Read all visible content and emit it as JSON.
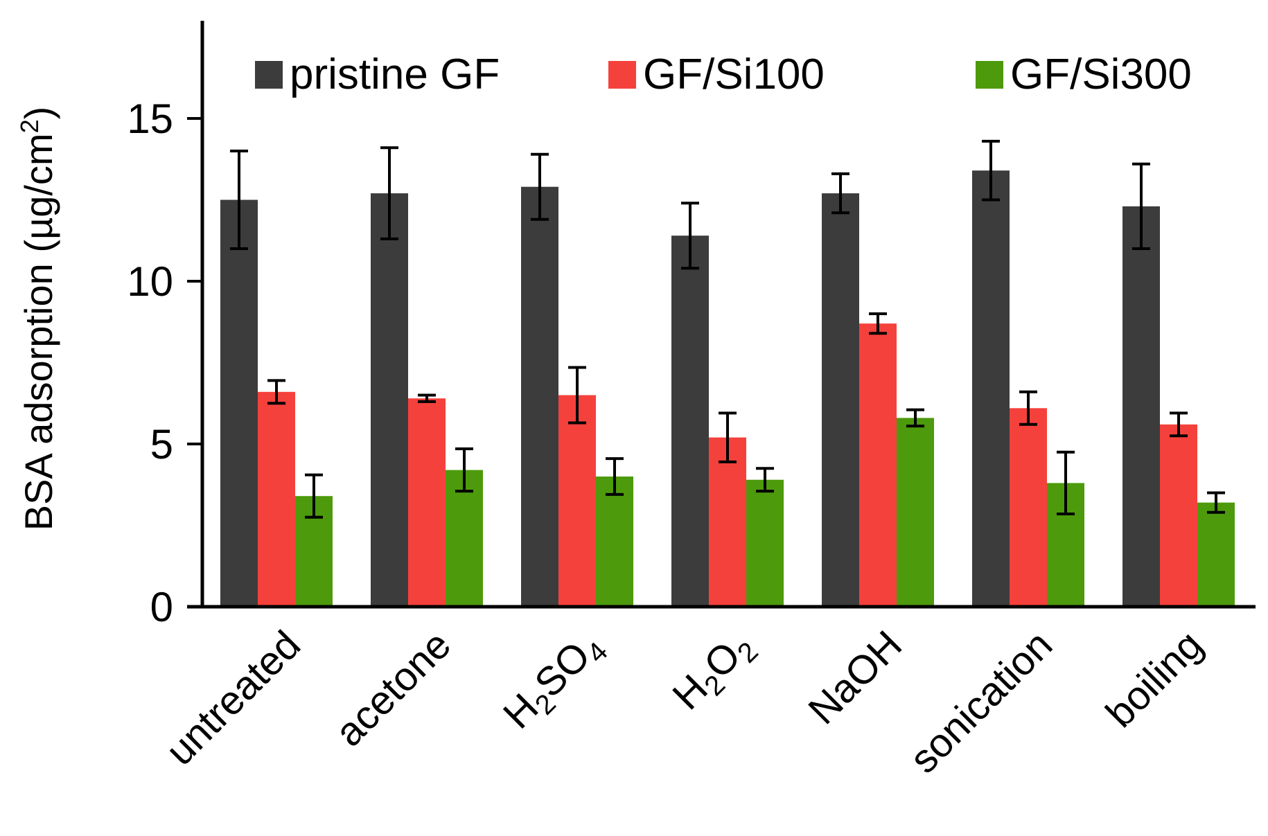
{
  "chart_data": {
    "type": "bar",
    "title": "",
    "xlabel": "",
    "ylabel": {
      "prefix": "BSA adsorption (µg/cm",
      "sup": "2",
      "suffix": ")"
    },
    "ylim": [
      0,
      18
    ],
    "yticks": [
      0,
      5,
      10,
      15
    ],
    "categories": [
      "untreated",
      "acetone",
      "H2SO4",
      "H2O2",
      "NaOH",
      "sonication",
      "boiling"
    ],
    "category_parts": [
      [
        {
          "t": "untreated",
          "s": false
        }
      ],
      [
        {
          "t": "acetone",
          "s": false
        }
      ],
      [
        {
          "t": "H",
          "s": false
        },
        {
          "t": "2",
          "s": true
        },
        {
          "t": "SO",
          "s": false
        },
        {
          "t": "4",
          "s": true
        }
      ],
      [
        {
          "t": "H",
          "s": false
        },
        {
          "t": "2",
          "s": true
        },
        {
          "t": "O",
          "s": false
        },
        {
          "t": "2",
          "s": true
        }
      ],
      [
        {
          "t": "NaOH",
          "s": false
        }
      ],
      [
        {
          "t": "sonication",
          "s": false
        }
      ],
      [
        {
          "t": "boiling",
          "s": false
        }
      ]
    ],
    "series": [
      {
        "name": "pristine GF",
        "color": "#3c3c3c",
        "values": [
          12.5,
          12.7,
          12.9,
          11.4,
          12.7,
          13.4,
          12.3
        ],
        "errors": [
          1.5,
          1.4,
          1.0,
          1.0,
          0.6,
          0.9,
          1.3
        ]
      },
      {
        "name": "GF/Si100",
        "color": "#f5413c",
        "values": [
          6.6,
          6.4,
          6.5,
          5.2,
          8.7,
          6.1,
          5.6
        ],
        "errors": [
          0.35,
          0.1,
          0.85,
          0.75,
          0.3,
          0.5,
          0.35
        ]
      },
      {
        "name": "GF/Si300",
        "color": "#4d9a0c",
        "values": [
          3.4,
          4.2,
          4.0,
          3.9,
          5.8,
          3.8,
          3.2
        ],
        "errors": [
          0.65,
          0.65,
          0.55,
          0.35,
          0.25,
          0.95,
          0.3
        ]
      }
    ],
    "legend_position": "top"
  }
}
